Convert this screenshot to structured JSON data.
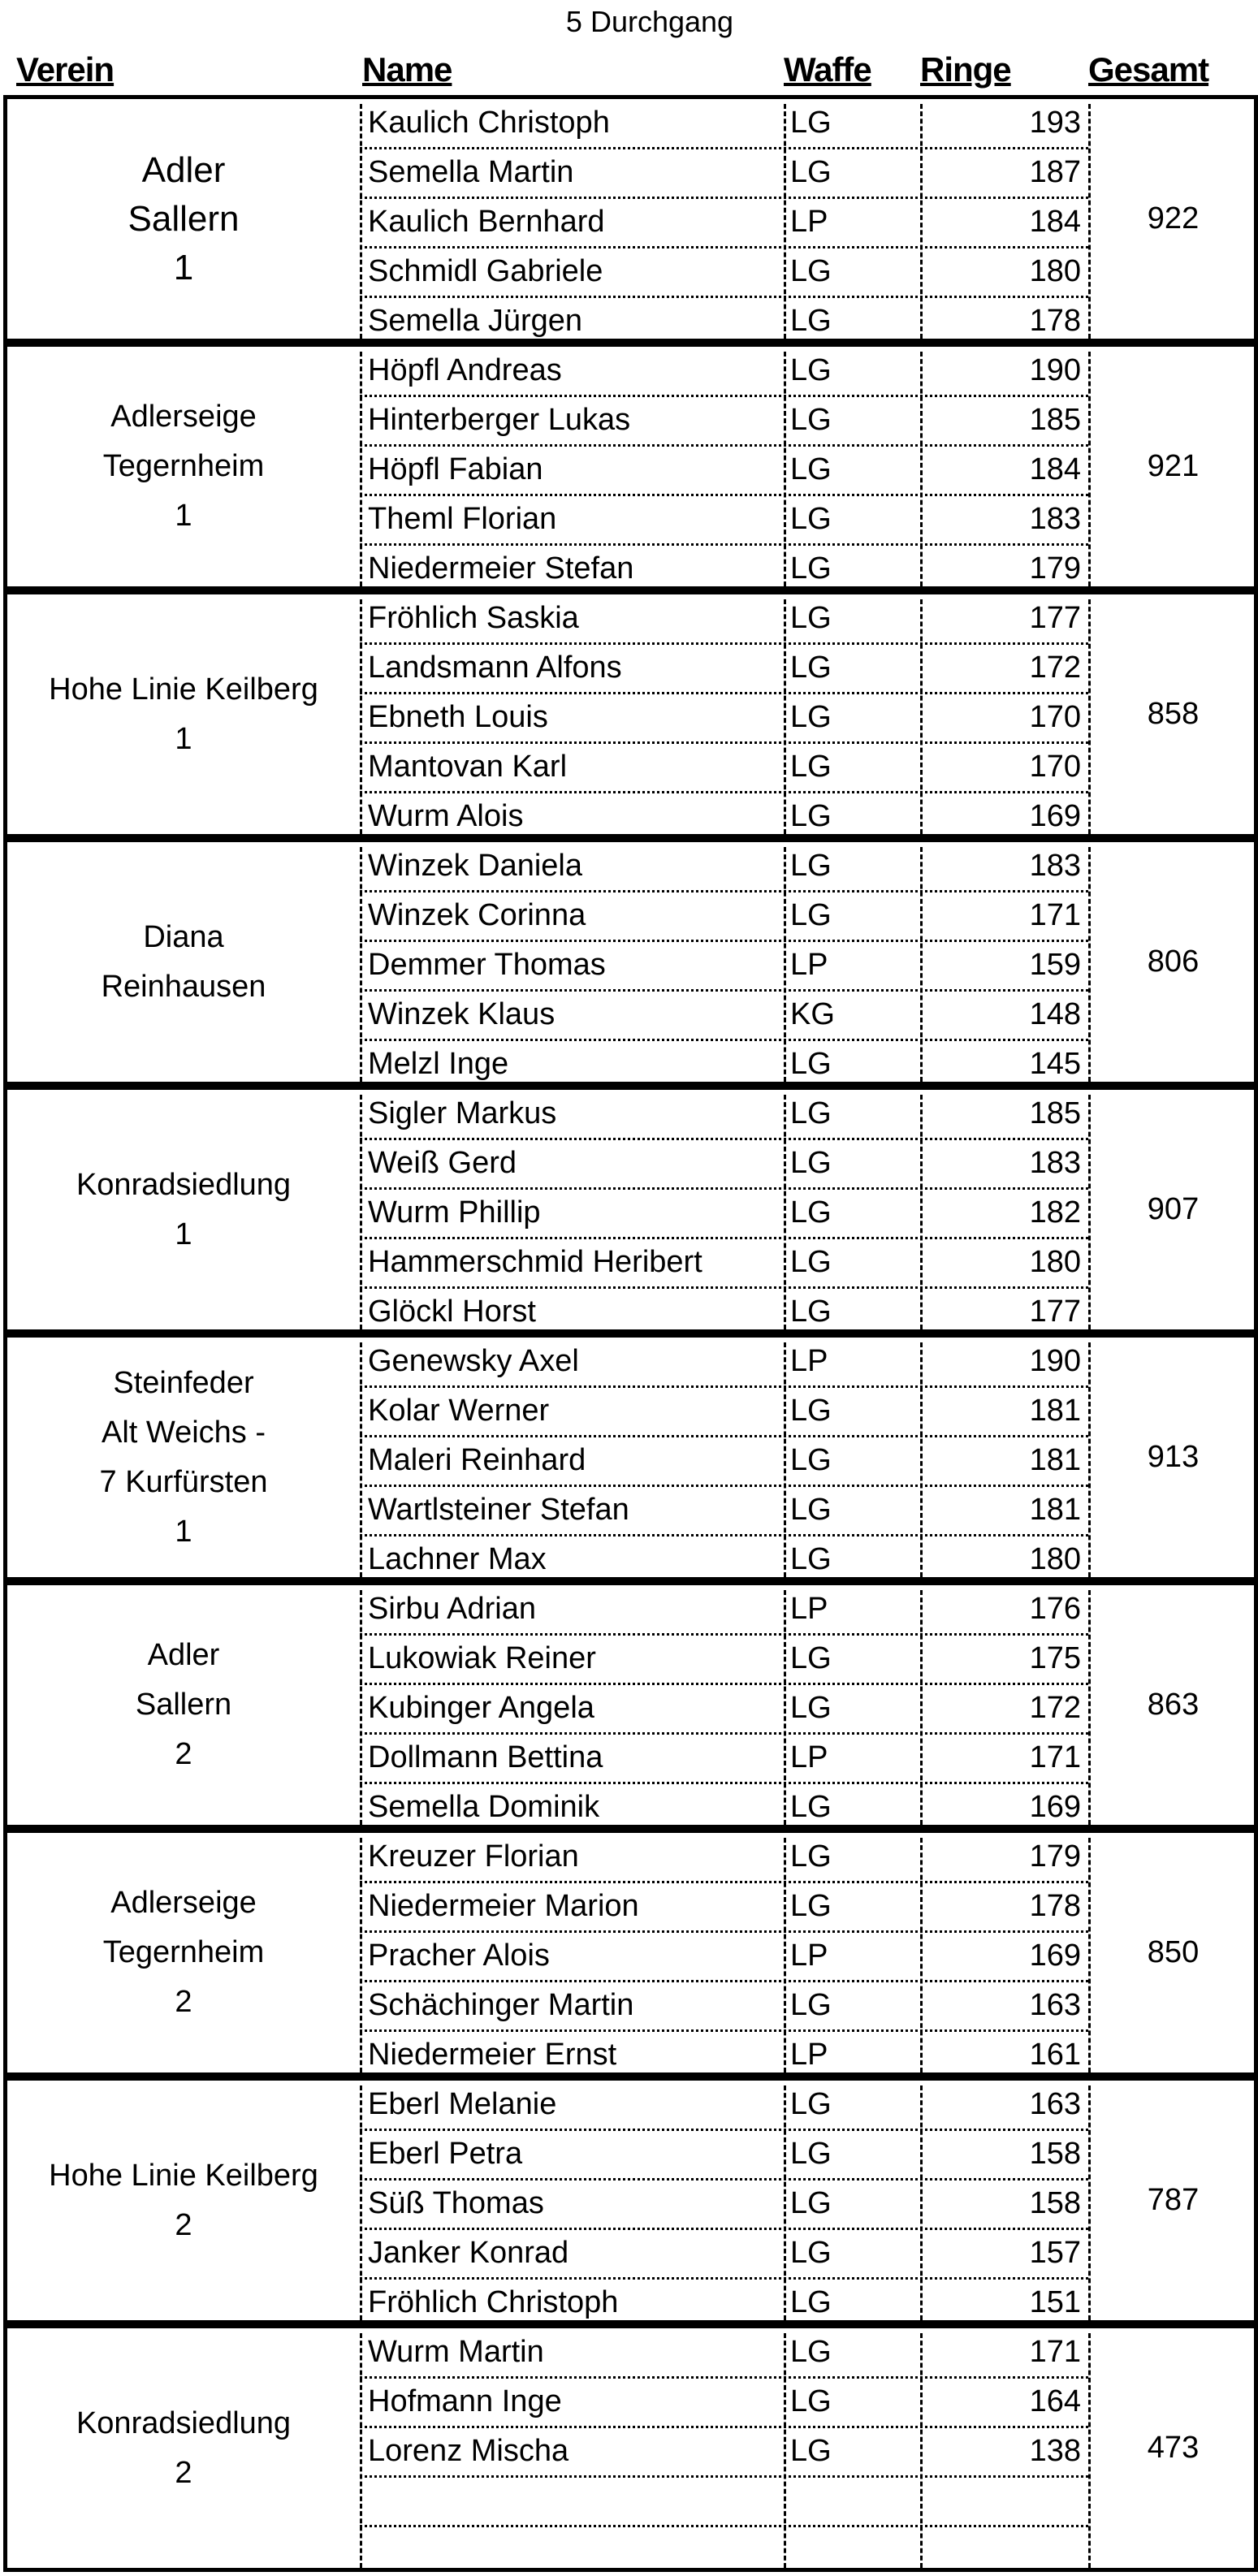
{
  "title": "5 Durchgang",
  "headers": {
    "verein": "Verein",
    "name": "Name",
    "waffe": "Waffe",
    "ringe": "Ringe",
    "gesamt": "Gesamt"
  },
  "teams": [
    {
      "verein": "Adler\nSallern\n1",
      "gesamt": "922",
      "rows": [
        {
          "name": "Kaulich Christoph",
          "waffe": "LG",
          "ringe": "193"
        },
        {
          "name": "Semella Martin",
          "waffe": "LG",
          "ringe": "187"
        },
        {
          "name": "Kaulich Bernhard",
          "waffe": "LP",
          "ringe": "184"
        },
        {
          "name": "Schmidl Gabriele",
          "waffe": "LG",
          "ringe": "180"
        },
        {
          "name": "Semella Jürgen",
          "waffe": "LG",
          "ringe": "178"
        }
      ]
    },
    {
      "verein": "Adlerseige\nTegernheim\n1",
      "gesamt": "921",
      "rows": [
        {
          "name": "Höpfl Andreas",
          "waffe": "LG",
          "ringe": "190"
        },
        {
          "name": "Hinterberger Lukas",
          "waffe": "LG",
          "ringe": "185"
        },
        {
          "name": "Höpfl Fabian",
          "waffe": "LG",
          "ringe": "184"
        },
        {
          "name": "Theml Florian",
          "waffe": "LG",
          "ringe": "183"
        },
        {
          "name": "Niedermeier Stefan",
          "waffe": "LG",
          "ringe": "179"
        }
      ]
    },
    {
      "verein": "Hohe Linie    Keilberg\n1",
      "gesamt": "858",
      "rows": [
        {
          "name": "Fröhlich Saskia",
          "waffe": "LG",
          "ringe": "177"
        },
        {
          "name": "Landsmann Alfons",
          "waffe": "LG",
          "ringe": "172"
        },
        {
          "name": "Ebneth Louis",
          "waffe": "LG",
          "ringe": "170"
        },
        {
          "name": "Mantovan Karl",
          "waffe": "LG",
          "ringe": "170"
        },
        {
          "name": "Wurm Alois",
          "waffe": "LG",
          "ringe": "169"
        }
      ]
    },
    {
      "verein": "Diana\nReinhausen",
      "gesamt": "806",
      "rows": [
        {
          "name": "Winzek Daniela",
          "waffe": "LG",
          "ringe": "183"
        },
        {
          "name": "Winzek Corinna",
          "waffe": "LG",
          "ringe": "171"
        },
        {
          "name": "Demmer Thomas",
          "waffe": "LP",
          "ringe": "159"
        },
        {
          "name": "Winzek Klaus",
          "waffe": "KG",
          "ringe": "148"
        },
        {
          "name": "Melzl Inge",
          "waffe": "LG",
          "ringe": "145"
        }
      ]
    },
    {
      "verein": "Konradsiedlung\n1",
      "gesamt": "907",
      "rows": [
        {
          "name": "Sigler Markus",
          "waffe": "LG",
          "ringe": "185"
        },
        {
          "name": "Weiß Gerd",
          "waffe": "LG",
          "ringe": "183"
        },
        {
          "name": "Wurm Phillip",
          "waffe": "LG",
          "ringe": "182"
        },
        {
          "name": "Hammerschmid Heribert",
          "waffe": "LG",
          "ringe": "180"
        },
        {
          "name": "Glöckl Horst",
          "waffe": "LG",
          "ringe": "177"
        }
      ]
    },
    {
      "verein": "Steinfeder\nAlt Weichs -\n7 Kurfürsten\n1",
      "gesamt": "913",
      "rows": [
        {
          "name": "Genewsky Axel",
          "waffe": "LP",
          "ringe": "190"
        },
        {
          "name": "Kolar Werner",
          "waffe": "LG",
          "ringe": "181"
        },
        {
          "name": "Maleri Reinhard",
          "waffe": "LG",
          "ringe": "181"
        },
        {
          "name": "Wartlsteiner Stefan",
          "waffe": "LG",
          "ringe": "181"
        },
        {
          "name": "Lachner Max",
          "waffe": "LG",
          "ringe": "180"
        }
      ]
    },
    {
      "verein": "Adler\nSallern\n2",
      "gesamt": "863",
      "rows": [
        {
          "name": "Sirbu Adrian",
          "waffe": "LP",
          "ringe": "176"
        },
        {
          "name": "Lukowiak Reiner",
          "waffe": "LG",
          "ringe": "175"
        },
        {
          "name": "Kubinger Angela",
          "waffe": "LG",
          "ringe": "172"
        },
        {
          "name": "Dollmann Bettina",
          "waffe": "LP",
          "ringe": "171"
        },
        {
          "name": "Semella Dominik",
          "waffe": "LG",
          "ringe": "169"
        }
      ]
    },
    {
      "verein": "Adlerseige\nTegernheim\n2",
      "gesamt": "850",
      "rows": [
        {
          "name": "Kreuzer Florian",
          "waffe": "LG",
          "ringe": "179"
        },
        {
          "name": "Niedermeier Marion",
          "waffe": "LG",
          "ringe": "178"
        },
        {
          "name": "Pracher Alois",
          "waffe": "LP",
          "ringe": "169"
        },
        {
          "name": "Schächinger Martin",
          "waffe": "LG",
          "ringe": "163"
        },
        {
          "name": "Niedermeier Ernst",
          "waffe": "LP",
          "ringe": "161"
        }
      ]
    },
    {
      "verein": "Hohe Linie    Keilberg\n2",
      "gesamt": "787",
      "rows": [
        {
          "name": "Eberl Melanie",
          "waffe": "LG",
          "ringe": "163"
        },
        {
          "name": "Eberl Petra",
          "waffe": "LG",
          "ringe": "158"
        },
        {
          "name": "Süß Thomas",
          "waffe": "LG",
          "ringe": "158"
        },
        {
          "name": "Janker Konrad",
          "waffe": "LG",
          "ringe": "157"
        },
        {
          "name": "Fröhlich Christoph",
          "waffe": "LG",
          "ringe": "151"
        }
      ]
    },
    {
      "verein": "Konradsiedlung\n2",
      "gesamt": "473",
      "rows": [
        {
          "name": "Wurm Martin",
          "waffe": "LG",
          "ringe": "171"
        },
        {
          "name": "Hofmann Inge",
          "waffe": "LG",
          "ringe": "164"
        },
        {
          "name": "Lorenz Mischa",
          "waffe": "LG",
          "ringe": "138"
        },
        {
          "name": "",
          "waffe": "",
          "ringe": ""
        },
        {
          "name": "",
          "waffe": "",
          "ringe": ""
        }
      ]
    }
  ]
}
